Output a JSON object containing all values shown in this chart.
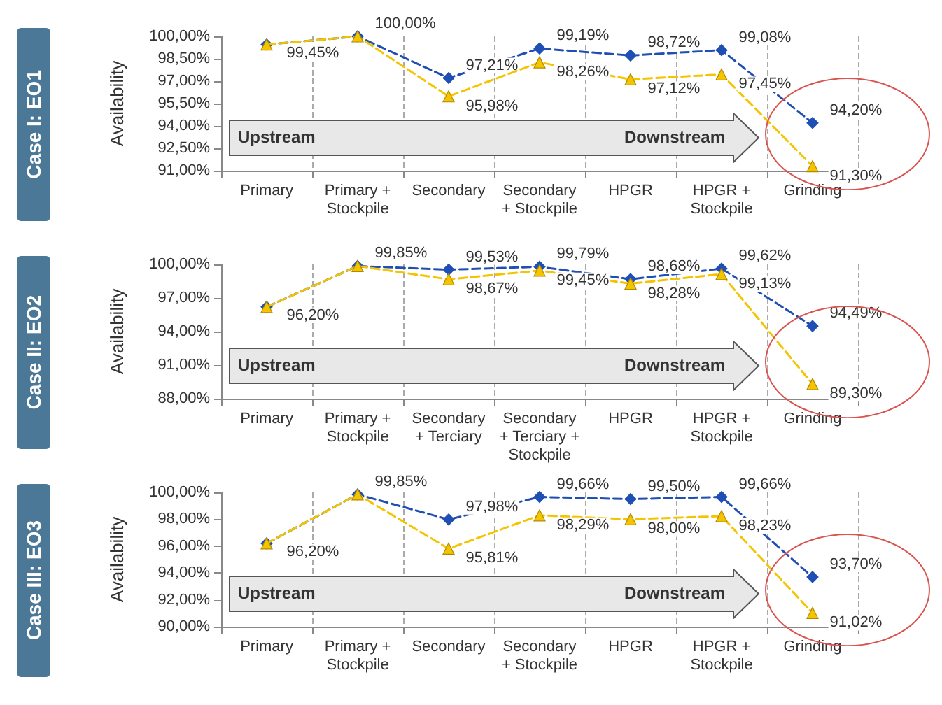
{
  "chart_data": [
    {
      "type": "line",
      "title": "Case I: EO1",
      "ylabel": "Availability",
      "categories": [
        "Primary",
        "Primary +\nStockpile",
        "Secondary",
        "Secondary\n+ Stockpile",
        "HPGR",
        "HPGR +\nStockpile",
        "Grinding"
      ],
      "series": [
        {
          "color": "#1f4fb4",
          "marker": "diamond",
          "line_style": "dashed",
          "values": [
            99.45,
            100.0,
            97.21,
            99.19,
            98.72,
            99.08,
            94.2
          ],
          "value_labels": [
            "99,45%",
            "100,00%",
            "97,21%",
            "99,19%",
            "98,72%",
            "99,08%",
            "94,20%"
          ]
        },
        {
          "color": "#f5c400",
          "marker": "triangle",
          "line_style": "dashed",
          "values": [
            99.45,
            100.0,
            95.98,
            98.26,
            97.12,
            97.45,
            91.3
          ],
          "value_labels": [
            null,
            null,
            "95,98%",
            "98,26%",
            "97,12%",
            "97,45%",
            "91,30%"
          ]
        }
      ],
      "ylim": [
        91,
        100
      ],
      "yticks": [
        {
          "value": 91,
          "label": "91,00%"
        },
        {
          "value": 92.5,
          "label": "92,50%"
        },
        {
          "value": 94,
          "label": "94,00%"
        },
        {
          "value": 95.5,
          "label": "95,50%"
        },
        {
          "value": 97,
          "label": "97,00%"
        },
        {
          "value": 98.5,
          "label": "98,50%"
        },
        {
          "value": 100,
          "label": "100,00%"
        }
      ],
      "grid": "x",
      "annotations": [
        "Upstream",
        "Downstream"
      ]
    },
    {
      "type": "line",
      "title": "Case II: EO2",
      "ylabel": "Availability",
      "categories": [
        "Primary",
        "Primary +\nStockpile",
        "Secondary\n+ Terciary",
        "Secondary\n+ Terciary +\nStockpile",
        "HPGR",
        "HPGR +\nStockpile",
        "Grinding"
      ],
      "series": [
        {
          "color": "#1f4fb4",
          "marker": "diamond",
          "line_style": "dashed",
          "values": [
            96.2,
            99.85,
            99.53,
            99.79,
            98.68,
            99.62,
            94.49
          ],
          "value_labels": [
            "96,20%",
            "99,85%",
            "99,53%",
            "99,79%",
            "98,68%",
            "99,62%",
            "94,49%"
          ]
        },
        {
          "color": "#f5c400",
          "marker": "triangle",
          "line_style": "dashed",
          "values": [
            96.2,
            99.85,
            98.67,
            99.45,
            98.28,
            99.13,
            89.3
          ],
          "value_labels": [
            null,
            null,
            "98,67%",
            "99,45%",
            "98,28%",
            "99,13%",
            "89,30%"
          ]
        }
      ],
      "ylim": [
        88,
        100
      ],
      "yticks": [
        {
          "value": 88,
          "label": "88,00%"
        },
        {
          "value": 91,
          "label": "91,00%"
        },
        {
          "value": 94,
          "label": "94,00%"
        },
        {
          "value": 97,
          "label": "97,00%"
        },
        {
          "value": 100,
          "label": "100,00%"
        }
      ],
      "grid": "x",
      "annotations": [
        "Upstream",
        "Downstream"
      ]
    },
    {
      "type": "line",
      "title": "Case III: EO3",
      "ylabel": "Availability",
      "categories": [
        "Primary",
        "Primary +\nStockpile",
        "Secondary",
        "Secondary\n+ Stockpile",
        "HPGR",
        "HPGR +\nStockpile",
        "Grinding"
      ],
      "series": [
        {
          "color": "#1f4fb4",
          "marker": "diamond",
          "line_style": "dashed",
          "values": [
            96.2,
            99.85,
            97.98,
            99.66,
            99.5,
            99.66,
            93.7
          ],
          "value_labels": [
            "96,20%",
            "99,85%",
            "97,98%",
            "99,66%",
            "99,50%",
            "99,66%",
            "93,70%"
          ]
        },
        {
          "color": "#f5c400",
          "marker": "triangle",
          "line_style": "dashed",
          "values": [
            96.2,
            99.85,
            95.81,
            98.29,
            98.0,
            98.23,
            91.02
          ],
          "value_labels": [
            null,
            null,
            "95,81%",
            "98,29%",
            "98,00%",
            "98,23%",
            "91,02%"
          ]
        }
      ],
      "ylim": [
        90,
        100
      ],
      "yticks": [
        {
          "value": 90,
          "label": "90,00%"
        },
        {
          "value": 92,
          "label": "92,00%"
        },
        {
          "value": 94,
          "label": "94,00%"
        },
        {
          "value": 96,
          "label": "96,00%"
        },
        {
          "value": 98,
          "label": "98,00%"
        },
        {
          "value": 100,
          "label": "100,00%"
        }
      ],
      "grid": "x",
      "annotations": [
        "Upstream",
        "Downstream"
      ]
    }
  ]
}
